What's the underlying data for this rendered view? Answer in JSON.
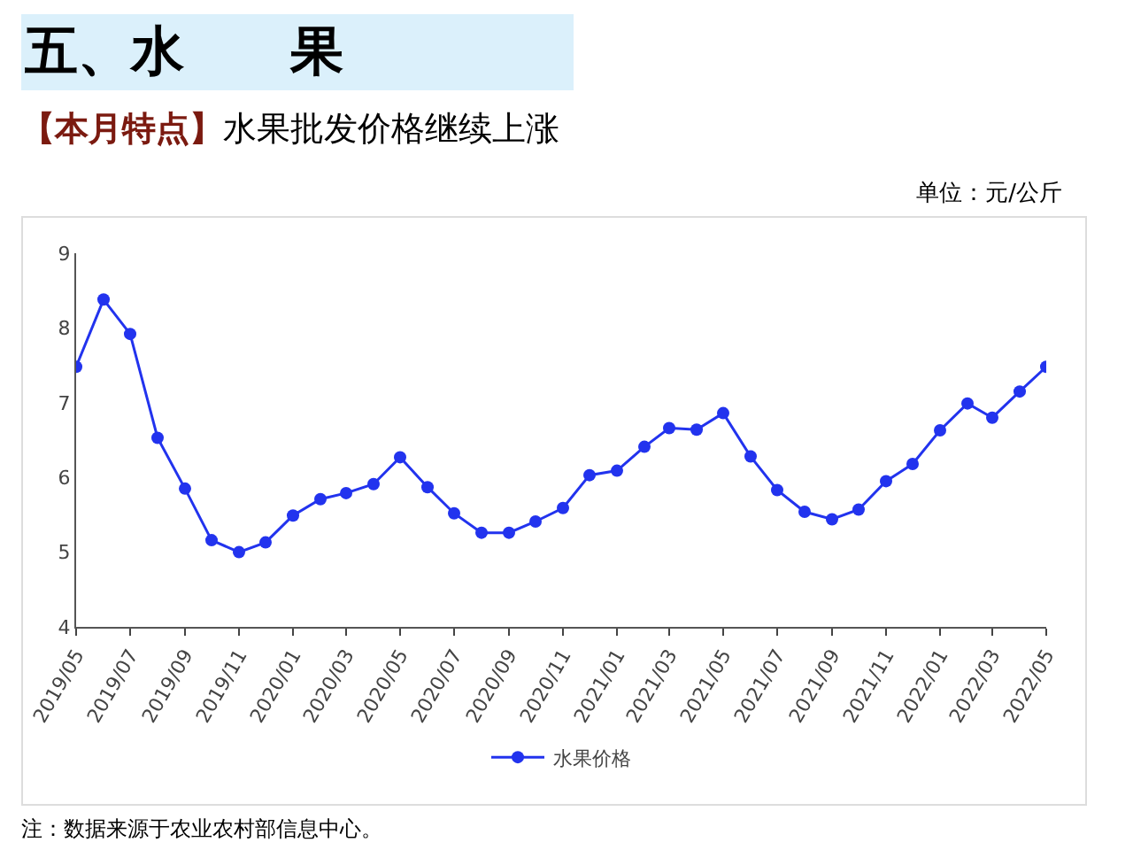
{
  "chart_data": {
    "type": "line",
    "title": "五、水　　果",
    "subtitle": "【本月特点】水果批发价格继续上涨",
    "annotations": [
      "单位：元/公斤",
      "注：数据来源于农业农村部信息中心。"
    ],
    "x": [
      "2019-05",
      "2019-06",
      "2019-07",
      "2019-08",
      "2019-09",
      "2019-10",
      "2019-11",
      "2019-12",
      "2020-01",
      "2020-02",
      "2020-03",
      "2020-04",
      "2020-05",
      "2020-06",
      "2020-07",
      "2020-08",
      "2020-09",
      "2020-10",
      "2020-11",
      "2020-12",
      "2021-01",
      "2021-02",
      "2021-03",
      "2021-04",
      "2021-05",
      "2021-06",
      "2021-07",
      "2021-08",
      "2021-09",
      "2021-10",
      "2021-11",
      "2021-12",
      "2022-01",
      "2022-02",
      "2022-03",
      "2022-04",
      "2022-05"
    ],
    "series": [
      {
        "name": "水果价格",
        "color": "#2233ee",
        "values": [
          7.48,
          8.38,
          7.92,
          6.53,
          5.85,
          5.16,
          5.0,
          5.13,
          5.49,
          5.71,
          5.79,
          5.91,
          6.27,
          5.87,
          5.52,
          5.26,
          5.26,
          5.41,
          5.59,
          6.03,
          6.09,
          6.41,
          6.66,
          6.64,
          6.86,
          6.28,
          5.83,
          5.54,
          5.44,
          5.57,
          5.95,
          6.18,
          6.63,
          6.99,
          6.8,
          7.15,
          7.48
        ]
      }
    ],
    "xlim": [
      "2019-05",
      "2022-05"
    ],
    "xticks": [
      {
        "value": "2019-05",
        "label": "2019/05"
      },
      {
        "value": "2019-07",
        "label": "2019/07"
      },
      {
        "value": "2019-09",
        "label": "2019/09"
      },
      {
        "value": "2019-11",
        "label": "2019/11"
      },
      {
        "value": "2020-01",
        "label": "2020/01"
      },
      {
        "value": "2020-03",
        "label": "2020/03"
      },
      {
        "value": "2020-05",
        "label": "2020/05"
      },
      {
        "value": "2020-07",
        "label": "2020/07"
      },
      {
        "value": "2020-09",
        "label": "2020/09"
      },
      {
        "value": "2020-11",
        "label": "2020/11"
      },
      {
        "value": "2021-01",
        "label": "2021/01"
      },
      {
        "value": "2021-03",
        "label": "2021/03"
      },
      {
        "value": "2021-05",
        "label": "2021/05"
      },
      {
        "value": "2021-07",
        "label": "2021/07"
      },
      {
        "value": "2021-09",
        "label": "2021/09"
      },
      {
        "value": "2021-11",
        "label": "2021/11"
      },
      {
        "value": "2022-01",
        "label": "2022/01"
      },
      {
        "value": "2022-03",
        "label": "2022/03"
      },
      {
        "value": "2022-05",
        "label": "2022/05"
      }
    ],
    "ylim": [
      4,
      9
    ],
    "yticks": [
      4,
      5,
      6,
      7,
      8,
      9
    ],
    "grid": false,
    "legend": "bottom",
    "marker": "circle",
    "line_style": "solid"
  }
}
